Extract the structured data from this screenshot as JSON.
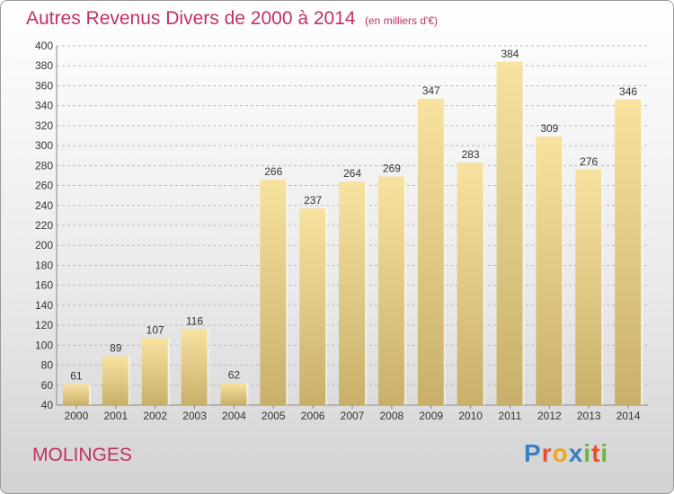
{
  "header": {
    "title": "Autres Revenus Divers de 2000 à 2014",
    "unit": "(en milliers d'€)"
  },
  "footer": {
    "place": "MOLINGES",
    "brand": "Proxiti",
    "brand_colors": [
      "#3a7fc4",
      "#e8502f",
      "#f2a51d",
      "#3a7fc4",
      "#6fb43f",
      "#e8502f",
      "#6fb43f"
    ]
  },
  "colors": {
    "title": "#c0306a",
    "bar_top": "#f8e2a0",
    "bar_bottom": "#c8b06a",
    "grid": "#b9b9b9"
  },
  "chart_data": {
    "type": "bar",
    "title": "Autres Revenus Divers de 2000 à 2014",
    "subtitle": "(en milliers d'€)",
    "categories": [
      "2000",
      "2001",
      "2002",
      "2003",
      "2004",
      "2005",
      "2006",
      "2007",
      "2008",
      "2009",
      "2010",
      "2011",
      "2012",
      "2013",
      "2014"
    ],
    "values": [
      61,
      89,
      107,
      116,
      62,
      266,
      237,
      264,
      269,
      347,
      283,
      384,
      309,
      276,
      346
    ],
    "ylim": [
      40,
      400
    ],
    "ytick_step": 20,
    "grid": true,
    "data_labels": true
  }
}
